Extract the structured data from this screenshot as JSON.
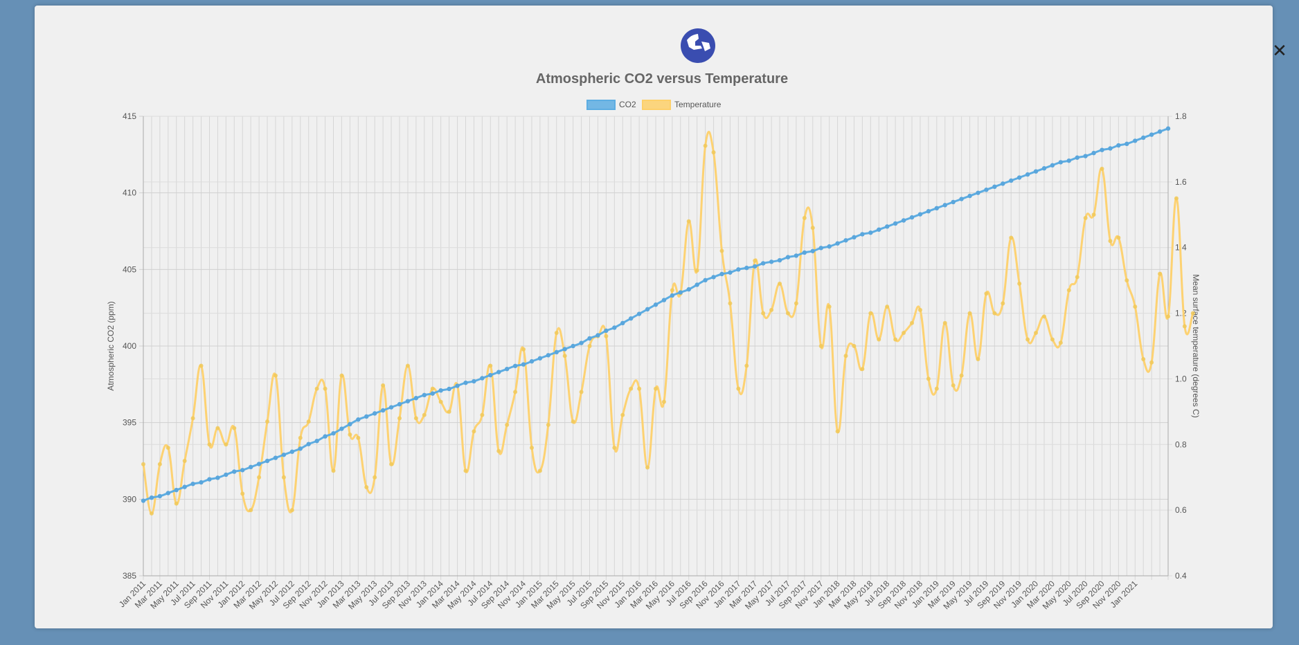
{
  "close_label": "✕",
  "logo_icon": "globe-icon",
  "chart_data": {
    "type": "line",
    "title": "Atmospheric CO2 versus Temperature",
    "legend": {
      "placement": "top",
      "entries": [
        "CO2",
        "Temperature"
      ]
    },
    "grid": true,
    "y_left": {
      "label": "Atmospheric CO2 (ppm)",
      "range": [
        385,
        415
      ],
      "ticks": [
        "385",
        "390",
        "395",
        "400",
        "405",
        "410",
        "415"
      ]
    },
    "y_right": {
      "label": "Mean surface temperature (degrees C)",
      "range": [
        0.4,
        1.8
      ],
      "ticks": [
        "0.4",
        "0.6",
        "0.8",
        "1.0",
        "1.2",
        "1.4",
        "1.6",
        "1.8"
      ]
    },
    "x_labels": [
      "Jan 2011",
      "Mar 2011",
      "May 2011",
      "Jul 2011",
      "Sep 2011",
      "Nov 2011",
      "Jan 2012",
      "Mar 2012",
      "May 2012",
      "Jul 2012",
      "Sep 2012",
      "Nov 2012",
      "Jan 2013",
      "Mar 2013",
      "May 2013",
      "Jul 2013",
      "Sep 2013",
      "Nov 2013",
      "Jan 2014",
      "Mar 2014",
      "May 2014",
      "Jul 2014",
      "Sep 2014",
      "Nov 2014",
      "Jan 2015",
      "Mar 2015",
      "May 2015",
      "Jul 2015",
      "Sep 2015",
      "Nov 2015",
      "Jan 2016",
      "Mar 2016",
      "May 2016",
      "Jul 2016",
      "Sep 2016",
      "Nov 2016",
      "Jan 2017",
      "Mar 2017",
      "May 2017",
      "Jul 2017",
      "Sep 2017",
      "Nov 2017",
      "Jan 2018",
      "Mar 2018",
      "May 2018",
      "Jul 2018",
      "Sep 2018",
      "Nov 2018",
      "Jan 2019",
      "Mar 2019",
      "May 2019",
      "Jul 2019",
      "Sep 2019",
      "Nov 2019",
      "Jan 2020",
      "Mar 2020",
      "May 2020",
      "Jul 2020",
      "Sep 2020",
      "Nov 2020",
      "Jan 2021"
    ],
    "colors": {
      "co2": "#5dade2",
      "temperature": "#fdd06a"
    },
    "series": [
      {
        "name": "CO2",
        "axis": "left",
        "values": [
          389.9,
          390.1,
          390.2,
          390.4,
          390.6,
          390.8,
          391.0,
          391.1,
          391.3,
          391.4,
          391.6,
          391.8,
          391.9,
          392.1,
          392.3,
          392.5,
          392.7,
          392.9,
          393.1,
          393.3,
          393.6,
          393.8,
          394.1,
          394.3,
          394.6,
          394.9,
          395.2,
          395.4,
          395.6,
          395.8,
          396.0,
          396.2,
          396.4,
          396.6,
          396.8,
          396.9,
          397.1,
          397.2,
          397.4,
          397.6,
          397.7,
          397.9,
          398.1,
          398.3,
          398.5,
          398.7,
          398.8,
          399.0,
          399.2,
          399.4,
          399.6,
          399.8,
          400.0,
          400.2,
          400.5,
          400.7,
          401.0,
          401.2,
          401.5,
          401.8,
          402.1,
          402.4,
          402.7,
          403.0,
          403.3,
          403.5,
          403.7,
          404.0,
          404.3,
          404.5,
          404.7,
          404.8,
          405.0,
          405.1,
          405.2,
          405.4,
          405.5,
          405.6,
          405.8,
          405.9,
          406.1,
          406.2,
          406.4,
          406.5,
          406.7,
          406.9,
          407.1,
          407.3,
          407.4,
          407.6,
          407.8,
          408.0,
          408.2,
          408.4,
          408.6,
          408.8,
          409.0,
          409.2,
          409.4,
          409.6,
          409.8,
          410.0,
          410.2,
          410.4,
          410.6,
          410.8,
          411.0,
          411.2,
          411.4,
          411.6,
          411.8,
          412.0,
          412.1,
          412.3,
          412.4,
          412.6,
          412.8,
          412.9,
          413.1,
          413.2,
          413.4,
          413.6,
          413.8,
          414.0,
          414.2
        ]
      },
      {
        "name": "Temperature",
        "axis": "right",
        "values": [
          0.74,
          0.59,
          0.74,
          0.79,
          0.62,
          0.75,
          0.88,
          1.04,
          0.8,
          0.85,
          0.8,
          0.85,
          0.65,
          0.6,
          0.7,
          0.87,
          1.01,
          0.7,
          0.6,
          0.82,
          0.87,
          0.97,
          0.97,
          0.72,
          1.01,
          0.83,
          0.82,
          0.67,
          0.7,
          0.98,
          0.74,
          0.88,
          1.04,
          0.88,
          0.89,
          0.97,
          0.93,
          0.9,
          0.98,
          0.72,
          0.84,
          0.89,
          1.04,
          0.78,
          0.86,
          0.96,
          1.09,
          0.79,
          0.72,
          0.86,
          1.14,
          1.07,
          0.87,
          0.96,
          1.1,
          1.13,
          1.13,
          0.79,
          0.89,
          0.97,
          0.97,
          0.73,
          0.97,
          0.93,
          1.27,
          1.26,
          1.48,
          1.33,
          1.71,
          1.69,
          1.39,
          1.23,
          0.97,
          1.04,
          1.36,
          1.2,
          1.21,
          1.29,
          1.2,
          1.23,
          1.49,
          1.46,
          1.1,
          1.22,
          0.84,
          1.07,
          1.1,
          1.03,
          1.2,
          1.12,
          1.22,
          1.12,
          1.14,
          1.17,
          1.21,
          1.0,
          0.97,
          1.17,
          0.98,
          1.01,
          1.2,
          1.06,
          1.26,
          1.2,
          1.23,
          1.43,
          1.29,
          1.12,
          1.14,
          1.19,
          1.12,
          1.11,
          1.27,
          1.31,
          1.49,
          1.5,
          1.64,
          1.42,
          1.43,
          1.3,
          1.22,
          1.06,
          1.05,
          1.32,
          1.19,
          1.55,
          1.16,
          1.2
        ]
      }
    ]
  }
}
